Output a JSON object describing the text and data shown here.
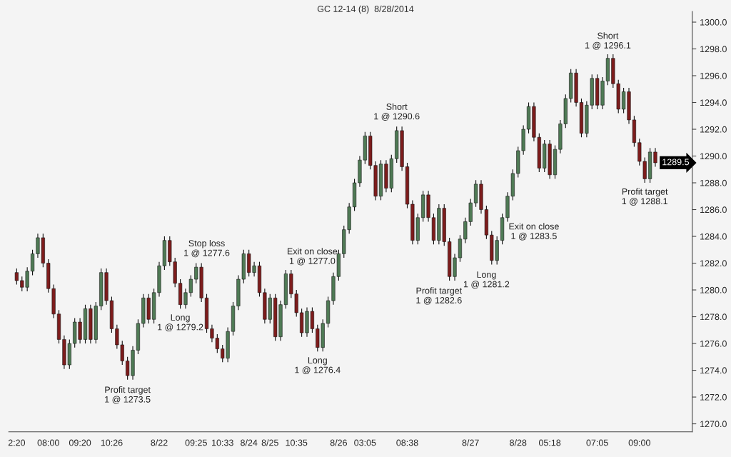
{
  "chart_data": {
    "type": "candlestick",
    "title": "GC 12-14 (8)  8/28/2014",
    "categories": [
      "2:20",
      null,
      null,
      null,
      null,
      null,
      "08:00",
      null,
      null,
      null,
      null,
      null,
      "09:20",
      null,
      null,
      null,
      null,
      null,
      "10:26",
      null,
      null,
      null,
      null,
      null,
      null,
      null,
      null,
      "8/22",
      null,
      null,
      null,
      null,
      null,
      null,
      "09:25",
      null,
      null,
      null,
      null,
      "10:33",
      null,
      null,
      null,
      null,
      "8/24",
      null,
      null,
      null,
      "8/25",
      null,
      null,
      null,
      null,
      "10:35",
      null,
      null,
      null,
      null,
      null,
      null,
      null,
      "8/26",
      null,
      null,
      null,
      null,
      "03:05",
      null,
      null,
      null,
      null,
      null,
      null,
      null,
      "08:38",
      null,
      null,
      null,
      null,
      null,
      null,
      null,
      null,
      null,
      null,
      null,
      "8/27",
      null,
      null,
      null,
      null,
      null,
      null,
      null,
      null,
      "8/28",
      null,
      null,
      null,
      null,
      null,
      "05:18",
      null,
      null,
      null,
      null,
      null,
      null,
      null,
      null,
      "07:05",
      null,
      null,
      null,
      null,
      null,
      null,
      null,
      "09:00",
      null,
      null,
      null
    ],
    "ohlc": [
      [
        1281.3,
        1281.6,
        1280.4,
        1280.7
      ],
      [
        1280.7,
        1281.0,
        1279.9,
        1280.2
      ],
      [
        1280.2,
        1281.7,
        1279.9,
        1281.4
      ],
      [
        1281.4,
        1283.0,
        1281.1,
        1282.7
      ],
      [
        1282.7,
        1284.2,
        1282.4,
        1283.9
      ],
      [
        1283.9,
        1284.2,
        1281.7,
        1282.0
      ],
      [
        1282.0,
        1282.3,
        1279.8,
        1280.1
      ],
      [
        1280.1,
        1280.4,
        1277.9,
        1278.2
      ],
      [
        1278.2,
        1278.5,
        1276.0,
        1276.3
      ],
      [
        1276.3,
        1276.6,
        1274.1,
        1274.4
      ],
      [
        1274.4,
        1276.3,
        1274.1,
        1276.0
      ],
      [
        1276.0,
        1277.9,
        1275.7,
        1277.6
      ],
      [
        1277.6,
        1277.9,
        1276.0,
        1276.3
      ],
      [
        1276.3,
        1278.9,
        1276.0,
        1278.6
      ],
      [
        1278.6,
        1278.9,
        1276.0,
        1276.3
      ],
      [
        1276.3,
        1279.1,
        1276.0,
        1278.8
      ],
      [
        1278.8,
        1281.6,
        1278.5,
        1281.3
      ],
      [
        1281.3,
        1281.6,
        1278.9,
        1279.2
      ],
      [
        1279.2,
        1279.5,
        1276.8,
        1277.1
      ],
      [
        1277.1,
        1277.4,
        1275.6,
        1275.9
      ],
      [
        1275.9,
        1276.2,
        1274.4,
        1274.7
      ],
      [
        1274.7,
        1275.0,
        1273.3,
        1273.6
      ],
      [
        1273.6,
        1275.8,
        1273.3,
        1275.5
      ],
      [
        1275.5,
        1277.8,
        1275.2,
        1277.5
      ],
      [
        1277.5,
        1279.7,
        1277.2,
        1279.4
      ],
      [
        1279.4,
        1279.7,
        1277.5,
        1277.8
      ],
      [
        1277.8,
        1280.1,
        1277.5,
        1279.8
      ],
      [
        1279.8,
        1282.1,
        1279.5,
        1281.8
      ],
      [
        1281.8,
        1284.0,
        1281.5,
        1283.7
      ],
      [
        1283.7,
        1284.0,
        1281.8,
        1282.1
      ],
      [
        1282.1,
        1282.4,
        1280.2,
        1280.5
      ],
      [
        1280.5,
        1280.8,
        1278.6,
        1278.9
      ],
      [
        1278.9,
        1280.1,
        1278.6,
        1279.8
      ],
      [
        1279.8,
        1281.1,
        1279.5,
        1280.8
      ],
      [
        1280.8,
        1282.0,
        1280.5,
        1281.7
      ],
      [
        1281.7,
        1282.0,
        1279.1,
        1279.4
      ],
      [
        1279.4,
        1279.7,
        1276.8,
        1277.1
      ],
      [
        1277.1,
        1277.4,
        1276.1,
        1276.4
      ],
      [
        1276.4,
        1276.7,
        1275.3,
        1275.6
      ],
      [
        1275.6,
        1275.9,
        1274.6,
        1274.9
      ],
      [
        1274.9,
        1277.2,
        1274.6,
        1276.9
      ],
      [
        1276.9,
        1279.1,
        1276.6,
        1278.8
      ],
      [
        1278.8,
        1281.1,
        1278.5,
        1280.8
      ],
      [
        1280.8,
        1283.0,
        1280.5,
        1282.7
      ],
      [
        1282.7,
        1283.0,
        1281.0,
        1281.3
      ],
      [
        1281.3,
        1282.1,
        1281.0,
        1281.8
      ],
      [
        1281.8,
        1282.1,
        1279.5,
        1279.8
      ],
      [
        1279.8,
        1280.1,
        1277.5,
        1277.8
      ],
      [
        1277.8,
        1279.7,
        1277.5,
        1279.4
      ],
      [
        1279.4,
        1279.7,
        1276.2,
        1276.5
      ],
      [
        1276.5,
        1279.2,
        1276.2,
        1278.9
      ],
      [
        1278.9,
        1281.5,
        1278.6,
        1281.2
      ],
      [
        1281.2,
        1281.5,
        1279.4,
        1279.7
      ],
      [
        1279.7,
        1280.0,
        1278.0,
        1278.3
      ],
      [
        1278.3,
        1278.6,
        1276.5,
        1276.8
      ],
      [
        1276.8,
        1278.7,
        1276.5,
        1278.4
      ],
      [
        1278.4,
        1278.7,
        1276.8,
        1277.1
      ],
      [
        1277.1,
        1277.4,
        1275.4,
        1275.7
      ],
      [
        1275.7,
        1277.8,
        1275.4,
        1277.5
      ],
      [
        1277.5,
        1279.5,
        1277.2,
        1279.2
      ],
      [
        1279.2,
        1281.3,
        1278.9,
        1281.0
      ],
      [
        1281.0,
        1283.0,
        1280.7,
        1282.7
      ],
      [
        1282.7,
        1284.8,
        1282.4,
        1284.5
      ],
      [
        1284.5,
        1286.5,
        1284.2,
        1286.2
      ],
      [
        1286.2,
        1288.3,
        1285.9,
        1288.0
      ],
      [
        1288.0,
        1290.0,
        1287.7,
        1289.7
      ],
      [
        1289.7,
        1291.8,
        1289.4,
        1291.5
      ],
      [
        1291.5,
        1291.8,
        1289.0,
        1289.3
      ],
      [
        1289.3,
        1289.6,
        1286.7,
        1287.0
      ],
      [
        1287.0,
        1289.7,
        1286.7,
        1289.4
      ],
      [
        1289.4,
        1289.7,
        1287.3,
        1287.6
      ],
      [
        1287.6,
        1290.1,
        1287.3,
        1289.8
      ],
      [
        1289.8,
        1292.2,
        1289.5,
        1291.9
      ],
      [
        1291.9,
        1292.2,
        1288.9,
        1289.2
      ],
      [
        1289.2,
        1289.5,
        1286.1,
        1286.4
      ],
      [
        1286.4,
        1286.7,
        1283.4,
        1283.7
      ],
      [
        1283.7,
        1285.7,
        1283.4,
        1285.4
      ],
      [
        1285.4,
        1287.4,
        1285.1,
        1287.1
      ],
      [
        1287.1,
        1287.4,
        1285.1,
        1285.4
      ],
      [
        1285.4,
        1285.7,
        1283.4,
        1283.7
      ],
      [
        1283.7,
        1286.4,
        1283.4,
        1286.1
      ],
      [
        1286.1,
        1286.4,
        1283.3,
        1283.6
      ],
      [
        1283.6,
        1283.9,
        1280.7,
        1281.0
      ],
      [
        1281.0,
        1282.7,
        1280.7,
        1282.4
      ],
      [
        1282.4,
        1284.1,
        1282.1,
        1283.8
      ],
      [
        1283.8,
        1285.4,
        1283.5,
        1285.1
      ],
      [
        1285.1,
        1286.8,
        1284.8,
        1286.5
      ],
      [
        1286.5,
        1288.2,
        1286.2,
        1287.9
      ],
      [
        1287.9,
        1288.2,
        1285.7,
        1286.0
      ],
      [
        1286.0,
        1286.3,
        1283.8,
        1284.1
      ],
      [
        1284.1,
        1284.4,
        1281.9,
        1282.2
      ],
      [
        1282.2,
        1284.0,
        1281.9,
        1283.7
      ],
      [
        1283.7,
        1285.7,
        1283.4,
        1285.4
      ],
      [
        1285.4,
        1287.3,
        1285.1,
        1287.0
      ],
      [
        1287.0,
        1289.0,
        1286.7,
        1288.7
      ],
      [
        1288.7,
        1290.7,
        1288.4,
        1290.4
      ],
      [
        1290.4,
        1292.3,
        1290.1,
        1292.0
      ],
      [
        1292.0,
        1294.0,
        1291.7,
        1293.7
      ],
      [
        1293.7,
        1294.0,
        1291.1,
        1291.4
      ],
      [
        1291.4,
        1291.7,
        1288.8,
        1289.1
      ],
      [
        1289.1,
        1291.2,
        1288.8,
        1290.9
      ],
      [
        1290.9,
        1291.2,
        1288.3,
        1288.6
      ],
      [
        1288.6,
        1290.8,
        1288.3,
        1290.5
      ],
      [
        1290.5,
        1292.7,
        1290.2,
        1292.4
      ],
      [
        1292.4,
        1294.6,
        1292.1,
        1294.3
      ],
      [
        1294.3,
        1296.5,
        1294.0,
        1296.2
      ],
      [
        1296.2,
        1296.5,
        1293.7,
        1294.0
      ],
      [
        1294.0,
        1294.3,
        1291.4,
        1291.7
      ],
      [
        1291.7,
        1294.1,
        1291.4,
        1293.8
      ],
      [
        1293.8,
        1296.1,
        1293.5,
        1295.8
      ],
      [
        1295.8,
        1296.1,
        1293.5,
        1293.8
      ],
      [
        1293.8,
        1295.9,
        1293.5,
        1295.6
      ],
      [
        1295.6,
        1297.6,
        1295.3,
        1297.3
      ],
      [
        1297.3,
        1297.6,
        1295.1,
        1295.4
      ],
      [
        1295.4,
        1295.7,
        1293.2,
        1293.5
      ],
      [
        1293.5,
        1295.1,
        1293.2,
        1294.8
      ],
      [
        1294.8,
        1295.1,
        1292.4,
        1292.7
      ],
      [
        1292.7,
        1293.0,
        1290.7,
        1291.0
      ],
      [
        1291.0,
        1291.3,
        1289.3,
        1289.6
      ],
      [
        1289.6,
        1289.9,
        1288.0,
        1288.3
      ],
      [
        1288.3,
        1290.6,
        1288.0,
        1290.3
      ],
      [
        1290.3,
        1290.6,
        1289.2,
        1289.5
      ]
    ],
    "colors": [
      "#7d1c1c",
      "#7d1c1c",
      "#4f7a55",
      "#4f7a55",
      "#4f7a55",
      "#7d1c1c",
      "#7d1c1c",
      "#7d1c1c",
      "#7d1c1c",
      "#7d1c1c",
      "#4f7a55",
      "#4f7a55",
      "#7d1c1c",
      "#4f7a55",
      "#7d1c1c",
      "#4f7a55",
      "#4f7a55",
      "#7d1c1c",
      "#7d1c1c",
      "#7d1c1c",
      "#7d1c1c",
      "#7d1c1c",
      "#4f7a55",
      "#4f7a55",
      "#4f7a55",
      "#7d1c1c",
      "#4f7a55",
      "#4f7a55",
      "#4f7a55",
      "#7d1c1c",
      "#7d1c1c",
      "#7d1c1c",
      "#4f7a55",
      "#4f7a55",
      "#4f7a55",
      "#7d1c1c",
      "#7d1c1c",
      "#7d1c1c",
      "#7d1c1c",
      "#7d1c1c",
      "#4f7a55",
      "#4f7a55",
      "#4f7a55",
      "#4f7a55",
      "#7d1c1c",
      "#4f7a55",
      "#7d1c1c",
      "#7d1c1c",
      "#4f7a55",
      "#7d1c1c",
      "#4f7a55",
      "#4f7a55",
      "#7d1c1c",
      "#7d1c1c",
      "#7d1c1c",
      "#4f7a55",
      "#7d1c1c",
      "#7d1c1c",
      "#4f7a55",
      "#4f7a55",
      "#4f7a55",
      "#4f7a55",
      "#4f7a55",
      "#4f7a55",
      "#4f7a55",
      "#4f7a55",
      "#4f7a55",
      "#7d1c1c",
      "#7d1c1c",
      "#4f7a55",
      "#7d1c1c",
      "#4f7a55",
      "#4f7a55",
      "#7d1c1c",
      "#7d1c1c",
      "#7d1c1c",
      "#4f7a55",
      "#4f7a55",
      "#7d1c1c",
      "#7d1c1c",
      "#4f7a55",
      "#7d1c1c",
      "#7d1c1c",
      "#4f7a55",
      "#4f7a55",
      "#4f7a55",
      "#4f7a55",
      "#4f7a55",
      "#7d1c1c",
      "#7d1c1c",
      "#7d1c1c",
      "#4f7a55",
      "#4f7a55",
      "#4f7a55",
      "#4f7a55",
      "#4f7a55",
      "#4f7a55",
      "#4f7a55",
      "#7d1c1c",
      "#7d1c1c",
      "#4f7a55",
      "#7d1c1c",
      "#4f7a55",
      "#4f7a55",
      "#4f7a55",
      "#4f7a55",
      "#7d1c1c",
      "#7d1c1c",
      "#4f7a55",
      "#4f7a55",
      "#7d1c1c",
      "#4f7a55",
      "#4f7a55",
      "#7d1c1c",
      "#7d1c1c",
      "#4f7a55",
      "#7d1c1c",
      "#7d1c1c",
      "#7d1c1c",
      "#7d1c1c",
      "#4f7a55",
      "#7d1c1c"
    ],
    "ylim": [
      1269.4,
      1300.8
    ],
    "yticks": [
      {
        "value": 1270,
        "label": "1270.0"
      },
      {
        "value": 1272,
        "label": "1272.0"
      },
      {
        "value": 1274,
        "label": "1274.0"
      },
      {
        "value": 1276,
        "label": "1276.0"
      },
      {
        "value": 1278,
        "label": "1278.0"
      },
      {
        "value": 1280,
        "label": "1280.0"
      },
      {
        "value": 1282,
        "label": "1282.0"
      },
      {
        "value": 1284,
        "label": "1284.0"
      },
      {
        "value": 1286,
        "label": "1286.0"
      },
      {
        "value": 1288,
        "label": "1288.0"
      },
      {
        "value": 1290,
        "label": "1290.0"
      },
      {
        "value": 1292,
        "label": "1292.0"
      },
      {
        "value": 1294,
        "label": "1294.0"
      },
      {
        "value": 1296,
        "label": "1296.0"
      },
      {
        "value": 1298,
        "label": "1298.0"
      },
      {
        "value": 1300,
        "label": "1300.0"
      }
    ],
    "grid": false,
    "annotations": [
      "Profit target\n1 @ 1273.5",
      "Stop loss\n1 @ 1277.6",
      "Long\n1 @ 1279.2",
      "Exit on close\n1 @ 1277.0",
      "Long\n1 @ 1276.4",
      "Short\n1 @ 1290.6",
      "Profit target\n1 @ 1282.6",
      "Long\n1 @ 1281.2",
      "Exit on close\n1 @ 1283.5",
      "Short\n1 @ 1296.1",
      "Profit target\n1 @ 1288.1",
      "1289.5"
    ]
  }
}
